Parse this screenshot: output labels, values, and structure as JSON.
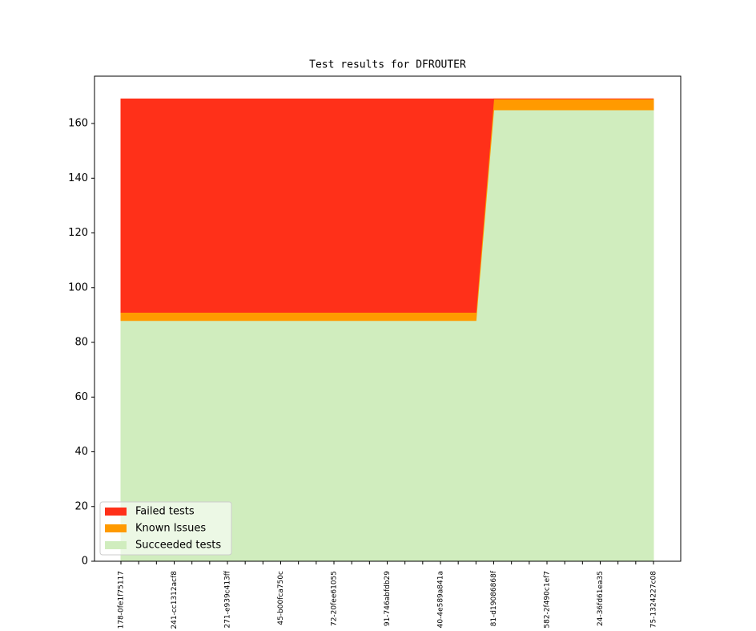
{
  "chart_data": {
    "type": "stacked-area",
    "title": "Test results for DFROUTER",
    "categories": [
      "178-0fe1f75117",
      null,
      null,
      "241-cc1312acf8",
      null,
      null,
      "271-e939c413ff",
      null,
      null,
      "45-b00fca750c",
      null,
      null,
      "72-20fee61055",
      null,
      null,
      "91-746abfdb29",
      null,
      null,
      "40-4e589a841a",
      null,
      null,
      "81-d19086868f",
      null,
      null,
      "582-2f490c1ef7",
      null,
      null,
      "24-36fd61ea35",
      null,
      null,
      "75-1324227c08"
    ],
    "series": [
      {
        "name": "Succeeded tests",
        "color": "#d0edbe",
        "values": [
          88,
          88,
          88,
          88,
          88,
          88,
          88,
          88,
          88,
          88,
          88,
          88,
          88,
          88,
          88,
          88,
          88,
          88,
          88,
          88,
          88,
          165,
          165,
          165,
          165,
          165,
          165,
          165,
          165,
          165,
          165
        ]
      },
      {
        "name": "Known Issues",
        "color": "#ff9a00",
        "values": [
          3,
          3,
          3,
          3,
          3,
          3,
          3,
          3,
          3,
          3,
          3,
          3,
          3,
          3,
          3,
          3,
          3,
          3,
          3,
          3,
          3,
          4,
          4,
          4,
          4,
          4,
          4,
          4,
          4,
          4,
          4
        ]
      },
      {
        "name": "Failed tests",
        "color": "#ff3019",
        "values": [
          78,
          78,
          78,
          78,
          78,
          78,
          78,
          78,
          78,
          78,
          78,
          78,
          78,
          78,
          78,
          78,
          78,
          78,
          78,
          78,
          78,
          0,
          0,
          0,
          0,
          0,
          0,
          0,
          0,
          0,
          0
        ]
      }
    ],
    "ylim": [
      0,
      177.3
    ],
    "yticks": [
      0,
      20,
      40,
      60,
      80,
      100,
      120,
      140,
      160
    ],
    "legend": "lower left"
  }
}
